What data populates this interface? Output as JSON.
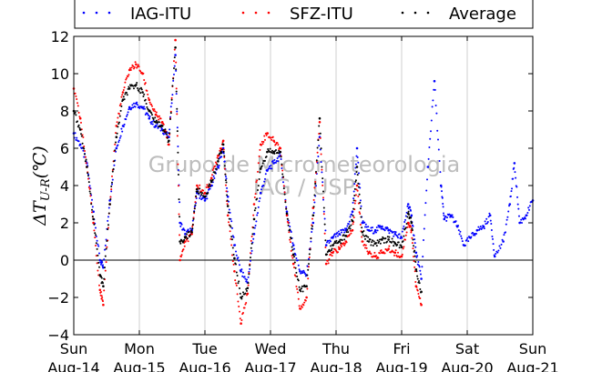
{
  "chart_data": {
    "type": "scatter",
    "title": "",
    "ylabel": "ΔT_{U-R}(℃)",
    "xlabel": "",
    "ylim": [
      -4,
      12
    ],
    "yticks": [
      -4,
      -2,
      0,
      2,
      4,
      6,
      8,
      10,
      12
    ],
    "x_unit": "day index (0 = Sun Aug-14)",
    "xlim": [
      0,
      7
    ],
    "x_ticks": [
      {
        "day": 0,
        "weekday": "Sun",
        "date": "Aug-14"
      },
      {
        "day": 1,
        "weekday": "Mon",
        "date": "Aug-15"
      },
      {
        "day": 2,
        "weekday": "Tue",
        "date": "Aug-16"
      },
      {
        "day": 3,
        "weekday": "Wed",
        "date": "Aug-17"
      },
      {
        "day": 4,
        "weekday": "Thu",
        "date": "Aug-18"
      },
      {
        "day": 5,
        "weekday": "Fri",
        "date": "Aug-19"
      },
      {
        "day": 6,
        "weekday": "Sat",
        "date": "Aug-20"
      },
      {
        "day": 7,
        "weekday": "Sun",
        "date": "Aug-21"
      }
    ],
    "grid": "vertical",
    "zero_line": true,
    "legend_placement": "top (above plot)",
    "watermark": [
      "Grupo de Micrometeorologia",
      "IAG / USP"
    ],
    "series": [
      {
        "name": "IAG-ITU",
        "color": "#0000ff",
        "points": [
          [
            0.0,
            6.8
          ],
          [
            0.1,
            6.2
          ],
          [
            0.2,
            5.2
          ],
          [
            0.3,
            2.6
          ],
          [
            0.4,
            0.0
          ],
          [
            0.45,
            -0.4
          ],
          [
            0.55,
            3.2
          ],
          [
            0.65,
            6.0
          ],
          [
            0.75,
            7.2
          ],
          [
            0.85,
            8.2
          ],
          [
            0.95,
            8.4
          ],
          [
            1.05,
            8.2
          ],
          [
            1.15,
            7.6
          ],
          [
            1.25,
            7.2
          ],
          [
            1.35,
            7.0
          ],
          [
            1.45,
            6.6
          ],
          [
            1.55,
            11.0
          ],
          [
            1.62,
            2.0
          ],
          [
            1.7,
            1.4
          ],
          [
            1.8,
            1.6
          ],
          [
            1.88,
            3.6
          ],
          [
            2.0,
            3.2
          ],
          [
            2.1,
            4.0
          ],
          [
            2.2,
            5.0
          ],
          [
            2.28,
            6.0
          ],
          [
            2.35,
            3.4
          ],
          [
            2.45,
            0.8
          ],
          [
            2.55,
            -0.6
          ],
          [
            2.65,
            -1.2
          ],
          [
            2.75,
            1.4
          ],
          [
            2.85,
            3.6
          ],
          [
            2.95,
            4.8
          ],
          [
            3.05,
            5.2
          ],
          [
            3.15,
            5.6
          ],
          [
            3.25,
            2.6
          ],
          [
            3.35,
            0.8
          ],
          [
            3.45,
            -0.6
          ],
          [
            3.55,
            -0.8
          ],
          [
            3.65,
            2.0
          ],
          [
            3.75,
            6.6
          ],
          [
            3.85,
            0.8
          ],
          [
            3.95,
            1.2
          ],
          [
            4.05,
            1.4
          ],
          [
            4.15,
            1.6
          ],
          [
            4.25,
            2.6
          ],
          [
            4.32,
            6.0
          ],
          [
            4.4,
            2.0
          ],
          [
            4.5,
            1.6
          ],
          [
            4.6,
            1.6
          ],
          [
            4.7,
            1.8
          ],
          [
            4.8,
            1.6
          ],
          [
            4.9,
            1.4
          ],
          [
            5.0,
            1.2
          ],
          [
            5.1,
            3.0
          ],
          [
            5.15,
            2.4
          ],
          [
            5.22,
            0.4
          ],
          [
            5.3,
            -1.0
          ],
          [
            5.4,
            5.0
          ],
          [
            5.5,
            9.6
          ],
          [
            5.6,
            4.0
          ],
          [
            5.65,
            2.2
          ],
          [
            5.75,
            2.4
          ],
          [
            5.85,
            1.8
          ],
          [
            5.95,
            0.8
          ],
          [
            6.05,
            1.2
          ],
          [
            6.15,
            1.6
          ],
          [
            6.25,
            1.8
          ],
          [
            6.35,
            2.4
          ],
          [
            6.42,
            0.2
          ],
          [
            6.55,
            1.0
          ],
          [
            6.65,
            3.0
          ],
          [
            6.72,
            5.2
          ],
          [
            6.8,
            2.0
          ],
          [
            6.9,
            2.4
          ],
          [
            7.0,
            3.2
          ]
        ]
      },
      {
        "name": "SFZ-ITU",
        "color": "#ff0000",
        "points": [
          [
            0.0,
            9.2
          ],
          [
            0.1,
            7.6
          ],
          [
            0.2,
            5.0
          ],
          [
            0.3,
            2.0
          ],
          [
            0.4,
            -1.6
          ],
          [
            0.45,
            -2.4
          ],
          [
            0.55,
            3.0
          ],
          [
            0.65,
            7.2
          ],
          [
            0.75,
            9.0
          ],
          [
            0.85,
            10.2
          ],
          [
            0.95,
            10.5
          ],
          [
            1.05,
            10.0
          ],
          [
            1.15,
            8.6
          ],
          [
            1.25,
            7.8
          ],
          [
            1.35,
            7.4
          ],
          [
            1.45,
            6.2
          ],
          [
            1.55,
            11.8
          ],
          [
            1.62,
            0.0
          ],
          [
            1.7,
            1.0
          ],
          [
            1.8,
            1.4
          ],
          [
            1.88,
            4.0
          ],
          [
            2.0,
            3.6
          ],
          [
            2.1,
            4.4
          ],
          [
            2.2,
            5.6
          ],
          [
            2.28,
            6.4
          ],
          [
            2.35,
            2.4
          ],
          [
            2.45,
            -0.6
          ],
          [
            2.55,
            -3.4
          ],
          [
            2.65,
            -1.8
          ],
          [
            2.75,
            3.0
          ],
          [
            2.85,
            6.2
          ],
          [
            2.95,
            6.8
          ],
          [
            3.05,
            6.4
          ],
          [
            3.15,
            6.0
          ],
          [
            3.25,
            2.4
          ],
          [
            3.35,
            -0.2
          ],
          [
            3.45,
            -2.6
          ],
          [
            3.55,
            -2.0
          ],
          [
            3.65,
            2.8
          ],
          [
            3.75,
            7.4
          ],
          [
            3.85,
            -0.2
          ],
          [
            3.95,
            0.4
          ],
          [
            4.05,
            0.6
          ],
          [
            4.15,
            1.0
          ],
          [
            4.25,
            1.6
          ],
          [
            4.32,
            4.0
          ],
          [
            4.4,
            1.0
          ],
          [
            4.5,
            0.4
          ],
          [
            4.6,
            0.2
          ],
          [
            4.7,
            0.4
          ],
          [
            4.8,
            0.6
          ],
          [
            4.9,
            0.4
          ],
          [
            5.0,
            0.2
          ],
          [
            5.1,
            2.0
          ],
          [
            5.15,
            1.6
          ],
          [
            5.22,
            -1.4
          ],
          [
            5.3,
            -2.4
          ]
        ]
      },
      {
        "name": "Average",
        "color": "#000000",
        "points": [
          [
            0.0,
            8.0
          ],
          [
            0.1,
            7.0
          ],
          [
            0.2,
            5.0
          ],
          [
            0.3,
            2.2
          ],
          [
            0.4,
            -0.8
          ],
          [
            0.45,
            -1.4
          ],
          [
            0.55,
            3.0
          ],
          [
            0.65,
            6.6
          ],
          [
            0.75,
            8.6
          ],
          [
            0.85,
            9.2
          ],
          [
            0.95,
            9.4
          ],
          [
            1.05,
            9.0
          ],
          [
            1.15,
            8.0
          ],
          [
            1.25,
            7.4
          ],
          [
            1.35,
            7.2
          ],
          [
            1.45,
            6.4
          ],
          [
            1.55,
            11.4
          ],
          [
            1.62,
            1.0
          ],
          [
            1.7,
            1.2
          ],
          [
            1.8,
            1.5
          ],
          [
            1.88,
            3.8
          ],
          [
            2.0,
            3.4
          ],
          [
            2.1,
            4.2
          ],
          [
            2.2,
            5.3
          ],
          [
            2.28,
            6.2
          ],
          [
            2.35,
            2.9
          ],
          [
            2.45,
            0.1
          ],
          [
            2.55,
            -2.0
          ],
          [
            2.65,
            -1.5
          ],
          [
            2.75,
            2.2
          ],
          [
            2.85,
            4.9
          ],
          [
            2.95,
            5.8
          ],
          [
            3.05,
            5.8
          ],
          [
            3.15,
            5.8
          ],
          [
            3.25,
            2.5
          ],
          [
            3.35,
            0.3
          ],
          [
            3.45,
            -1.6
          ],
          [
            3.55,
            -1.4
          ],
          [
            3.65,
            2.4
          ],
          [
            3.75,
            7.6
          ],
          [
            3.85,
            0.3
          ],
          [
            3.95,
            0.8
          ],
          [
            4.05,
            1.0
          ],
          [
            4.15,
            1.3
          ],
          [
            4.25,
            2.1
          ],
          [
            4.32,
            5.0
          ],
          [
            4.4,
            1.5
          ],
          [
            4.5,
            1.0
          ],
          [
            4.6,
            0.9
          ],
          [
            4.7,
            1.1
          ],
          [
            4.8,
            1.1
          ],
          [
            4.9,
            0.9
          ],
          [
            5.0,
            0.7
          ],
          [
            5.1,
            2.5
          ],
          [
            5.15,
            2.0
          ],
          [
            5.22,
            -0.5
          ],
          [
            5.3,
            -1.7
          ]
        ]
      }
    ]
  }
}
